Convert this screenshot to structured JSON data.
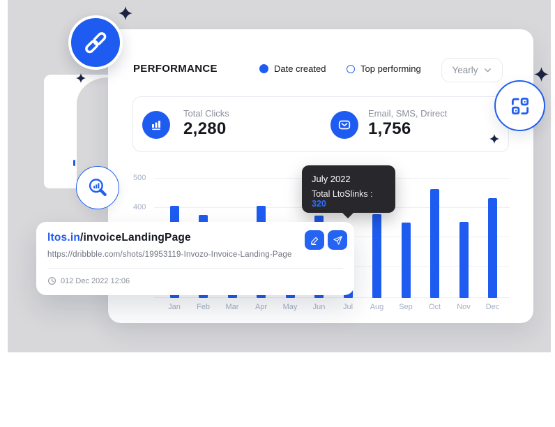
{
  "colors": {
    "accent_blue": "#1e5bf0",
    "bright_blue": "#2e6cff",
    "sparkle_navy": "#1a2342",
    "tooltip_bg": "#28282c",
    "backdrop_gray": "#d8d8da"
  },
  "header": {
    "title": "PERFORMANCE",
    "legend": [
      {
        "label": "Date created",
        "marker": "filled-dot"
      },
      {
        "label": "Top performing",
        "marker": "outline-dot"
      }
    ],
    "period_selector": {
      "value": "Yearly",
      "icon": "chevron-down-icon"
    }
  },
  "stats": [
    {
      "icon": "bar-chart-icon",
      "label": "Total Clicks",
      "value": "2,280"
    },
    {
      "icon": "envelope-icon",
      "label": "Email, SMS, Drirect",
      "value": "1,756"
    }
  ],
  "chart_data": {
    "type": "bar",
    "series_name": "Total LtoSlinks",
    "categories": [
      "Jan",
      "Feb",
      "Mar",
      "Apr",
      "May",
      "Jun",
      "Jul",
      "Aug",
      "Sep",
      "Oct",
      "Nov",
      "Dec"
    ],
    "values": [
      405,
      373,
      340,
      405,
      335,
      372,
      320,
      375,
      348,
      462,
      350,
      431
    ],
    "y_ticks_visible": [
      "500",
      "400"
    ],
    "ylim": [
      0,
      500
    ],
    "grid": true,
    "legend_position": "top",
    "xlabel": "",
    "ylabel": ""
  },
  "tooltip": {
    "title": "July 2022",
    "label": "Total LtoSlinks :",
    "value": "320"
  },
  "link_card": {
    "short_domain": "ltos.in",
    "short_path": "/invoiceLandingPage",
    "full_url": "https://dribbble.com/shots/19953119-Invozo-Invoice-Landing-Page",
    "timestamp": "012 Dec 2022 12:06",
    "buttons": [
      {
        "icon": "pencil-icon"
      },
      {
        "icon": "send-icon"
      }
    ]
  },
  "floating_icons": [
    {
      "icon": "link-icon"
    },
    {
      "icon": "qr-scan-icon"
    },
    {
      "icon": "search-analytics-icon"
    }
  ]
}
